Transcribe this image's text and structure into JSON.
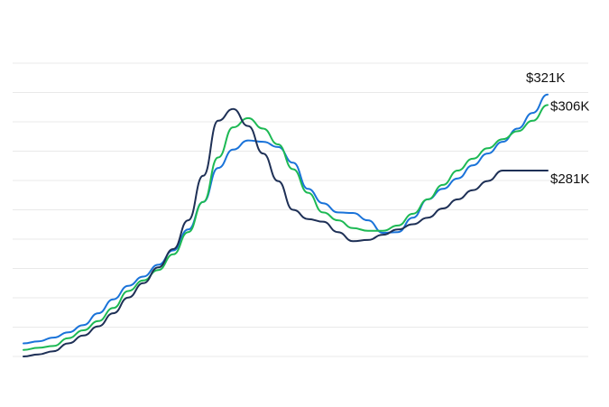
{
  "chart_data": {
    "type": "line",
    "title": "",
    "xlabel": "",
    "ylabel": "",
    "ylim": [
      210,
      322
    ],
    "x": [
      0,
      3,
      6,
      9,
      12,
      15,
      18,
      21,
      24,
      27,
      30,
      33,
      36,
      39,
      42,
      45,
      48,
      51,
      54,
      57,
      60,
      63,
      66,
      69,
      72,
      75,
      78,
      81,
      84,
      87,
      90,
      93,
      96,
      99,
      102,
      105,
      108,
      111,
      114,
      117,
      120
    ],
    "grid": true,
    "legend": "none",
    "series": [
      {
        "name": "",
        "color": "#1a73d9",
        "end_label": "$321K",
        "values": [
          215.0,
          215.8,
          217.2,
          219.2,
          222.0,
          226.5,
          231.8,
          237.0,
          240.5,
          245.0,
          250.5,
          258.5,
          269.0,
          282.0,
          289.0,
          292.5,
          292.0,
          290.0,
          284.0,
          274.0,
          268.5,
          265.0,
          264.8,
          262.0,
          257.2,
          257.5,
          263.0,
          270.0,
          274.0,
          278.0,
          283.0,
          287.5,
          292.0,
          297.0,
          303.0,
          310.0,
          321.0,
          321.0,
          321.0,
          321.0,
          321.0
        ]
      },
      {
        "name": "",
        "color": "#1db954",
        "end_label": "$306K",
        "values": [
          212.5,
          213.3,
          214.0,
          217.0,
          220.0,
          223.5,
          228.5,
          235.0,
          239.0,
          243.0,
          249.0,
          257.5,
          269.0,
          286.0,
          297.5,
          301.0,
          297.0,
          291.0,
          281.5,
          272.5,
          265.0,
          262.0,
          259.0,
          258.0,
          258.0,
          260.0,
          264.5,
          270.0,
          275.5,
          281.0,
          285.5,
          289.5,
          293.0,
          296.0,
          300.0,
          306.0,
          306.0,
          306.0,
          306.0,
          306.0,
          306.0
        ]
      },
      {
        "name": "",
        "color": "#1e3056",
        "end_label": "$281K",
        "values": [
          210.0,
          210.8,
          212.0,
          215.0,
          218.0,
          221.5,
          226.5,
          232.5,
          238.0,
          244.0,
          251.0,
          262.0,
          279.0,
          300.0,
          304.5,
          298.0,
          287.5,
          277.0,
          266.0,
          262.5,
          261.5,
          257.5,
          254.0,
          254.5,
          256.5,
          258.5,
          260.5,
          263.0,
          266.5,
          270.0,
          273.5,
          277.0,
          281.0,
          281.0,
          281.0,
          281.0,
          281.0,
          281.0,
          281.0,
          281.0,
          281.0
        ]
      }
    ]
  }
}
